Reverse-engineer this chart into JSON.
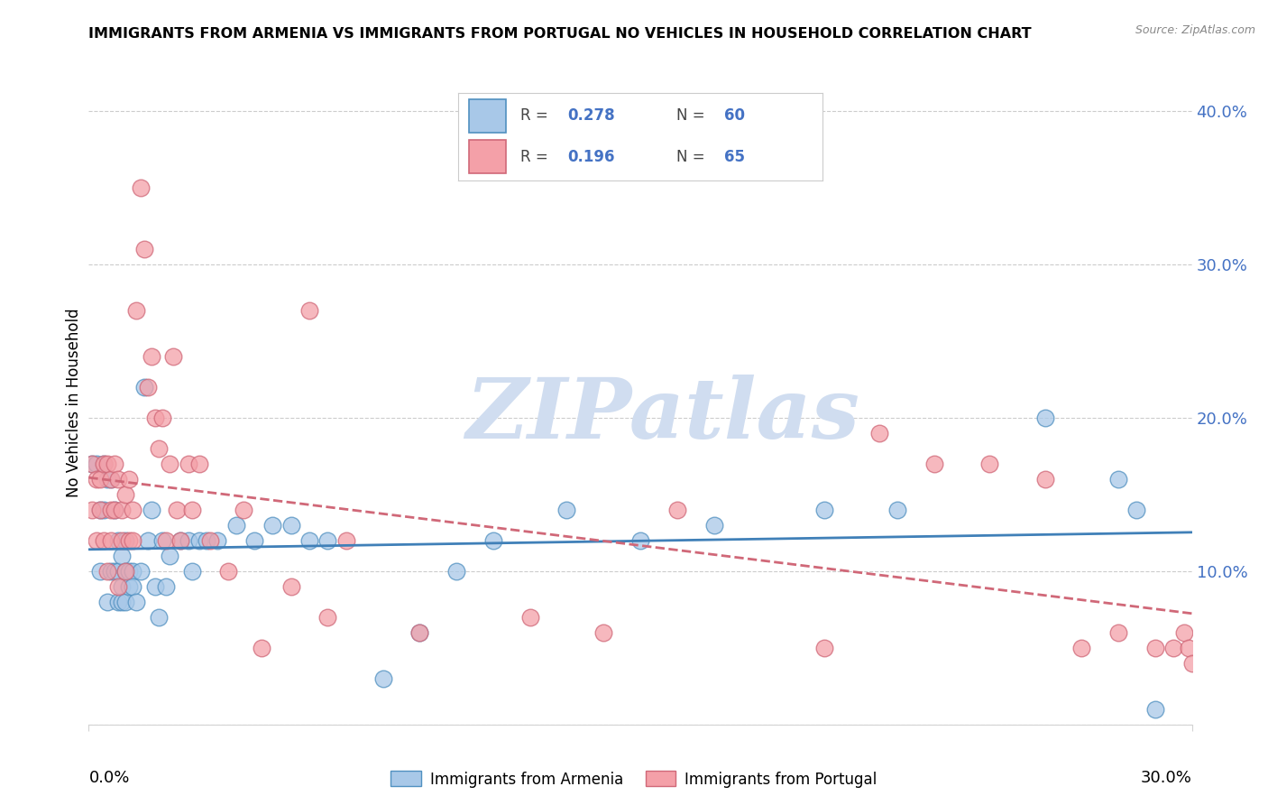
{
  "title": "IMMIGRANTS FROM ARMENIA VS IMMIGRANTS FROM PORTUGAL NO VEHICLES IN HOUSEHOLD CORRELATION CHART",
  "source": "Source: ZipAtlas.com",
  "ylabel": "No Vehicles in Household",
  "xlim": [
    0.0,
    0.3
  ],
  "ylim": [
    0.0,
    0.42
  ],
  "yticks": [
    0.0,
    0.1,
    0.2,
    0.3,
    0.4
  ],
  "ytick_labels": [
    "",
    "10.0%",
    "20.0%",
    "30.0%",
    "40.0%"
  ],
  "xtick_labels": [
    "0.0%",
    "30.0%"
  ],
  "legend_r1": "0.278",
  "legend_n1": "60",
  "legend_r2": "0.196",
  "legend_n2": "65",
  "color_armenia": "#a8c8e8",
  "color_portugal": "#f4a0a8",
  "color_armenia_edge": "#5090c0",
  "color_portugal_edge": "#d06878",
  "color_armenia_line": "#4080b8",
  "color_portugal_line": "#d06878",
  "color_tick_label": "#4472c4",
  "watermark": "ZIPatlas",
  "watermark_color": "#d0ddf0",
  "label1": "Immigrants from Armenia",
  "label2": "Immigrants from Portugal",
  "armenia_x": [
    0.001,
    0.002,
    0.003,
    0.003,
    0.004,
    0.004,
    0.005,
    0.005,
    0.006,
    0.006,
    0.007,
    0.007,
    0.008,
    0.008,
    0.008,
    0.009,
    0.009,
    0.009,
    0.01,
    0.01,
    0.01,
    0.011,
    0.011,
    0.012,
    0.012,
    0.013,
    0.014,
    0.015,
    0.016,
    0.017,
    0.018,
    0.019,
    0.02,
    0.021,
    0.022,
    0.025,
    0.027,
    0.028,
    0.03,
    0.032,
    0.035,
    0.04,
    0.045,
    0.05,
    0.055,
    0.06,
    0.065,
    0.08,
    0.09,
    0.1,
    0.11,
    0.13,
    0.15,
    0.17,
    0.2,
    0.22,
    0.26,
    0.28,
    0.285,
    0.29
  ],
  "armenia_y": [
    0.17,
    0.17,
    0.14,
    0.1,
    0.17,
    0.14,
    0.16,
    0.08,
    0.1,
    0.16,
    0.14,
    0.1,
    0.12,
    0.1,
    0.08,
    0.11,
    0.09,
    0.08,
    0.12,
    0.1,
    0.08,
    0.1,
    0.09,
    0.1,
    0.09,
    0.08,
    0.1,
    0.22,
    0.12,
    0.14,
    0.09,
    0.07,
    0.12,
    0.09,
    0.11,
    0.12,
    0.12,
    0.1,
    0.12,
    0.12,
    0.12,
    0.13,
    0.12,
    0.13,
    0.13,
    0.12,
    0.12,
    0.03,
    0.06,
    0.1,
    0.12,
    0.14,
    0.12,
    0.13,
    0.14,
    0.14,
    0.2,
    0.16,
    0.14,
    0.01
  ],
  "portugal_x": [
    0.001,
    0.001,
    0.002,
    0.002,
    0.003,
    0.003,
    0.004,
    0.004,
    0.005,
    0.005,
    0.006,
    0.006,
    0.006,
    0.007,
    0.007,
    0.008,
    0.008,
    0.009,
    0.009,
    0.01,
    0.01,
    0.011,
    0.011,
    0.012,
    0.012,
    0.013,
    0.014,
    0.015,
    0.016,
    0.017,
    0.018,
    0.019,
    0.02,
    0.021,
    0.022,
    0.023,
    0.024,
    0.025,
    0.027,
    0.028,
    0.03,
    0.033,
    0.038,
    0.042,
    0.047,
    0.055,
    0.06,
    0.065,
    0.07,
    0.09,
    0.12,
    0.14,
    0.16,
    0.2,
    0.215,
    0.23,
    0.245,
    0.26,
    0.27,
    0.28,
    0.29,
    0.295,
    0.298,
    0.299,
    0.3
  ],
  "portugal_y": [
    0.14,
    0.17,
    0.12,
    0.16,
    0.14,
    0.16,
    0.12,
    0.17,
    0.1,
    0.17,
    0.14,
    0.12,
    0.16,
    0.17,
    0.14,
    0.09,
    0.16,
    0.14,
    0.12,
    0.15,
    0.1,
    0.12,
    0.16,
    0.12,
    0.14,
    0.27,
    0.35,
    0.31,
    0.22,
    0.24,
    0.2,
    0.18,
    0.2,
    0.12,
    0.17,
    0.24,
    0.14,
    0.12,
    0.17,
    0.14,
    0.17,
    0.12,
    0.1,
    0.14,
    0.05,
    0.09,
    0.27,
    0.07,
    0.12,
    0.06,
    0.07,
    0.06,
    0.14,
    0.05,
    0.19,
    0.17,
    0.17,
    0.16,
    0.05,
    0.06,
    0.05,
    0.05,
    0.06,
    0.05,
    0.04
  ]
}
